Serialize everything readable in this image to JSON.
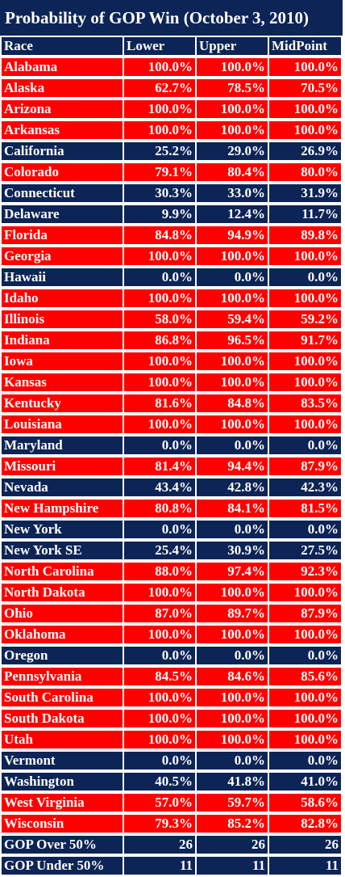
{
  "colors": {
    "gop": "#ff0000",
    "dem": "#0d2456",
    "header": "#0d2456",
    "text": "#ffffff"
  },
  "chart_data": {
    "type": "table",
    "title": "Probability of GOP Win (October 3, 2010)",
    "columns": [
      "Race",
      "Lower",
      "Upper",
      "MidPoint"
    ],
    "rows": [
      {
        "race": "Alabama",
        "lower": "100.0%",
        "upper": "100.0%",
        "mid": "100.0%",
        "party": "gop"
      },
      {
        "race": "Alaska",
        "lower": "62.7%",
        "upper": "78.5%",
        "mid": "70.5%",
        "party": "gop"
      },
      {
        "race": "Arizona",
        "lower": "100.0%",
        "upper": "100.0%",
        "mid": "100.0%",
        "party": "gop"
      },
      {
        "race": "Arkansas",
        "lower": "100.0%",
        "upper": "100.0%",
        "mid": "100.0%",
        "party": "gop"
      },
      {
        "race": "California",
        "lower": "25.2%",
        "upper": "29.0%",
        "mid": "26.9%",
        "party": "dem"
      },
      {
        "race": "Colorado",
        "lower": "79.1%",
        "upper": "80.4%",
        "mid": "80.0%",
        "party": "gop"
      },
      {
        "race": "Connecticut",
        "lower": "30.3%",
        "upper": "33.0%",
        "mid": "31.9%",
        "party": "dem"
      },
      {
        "race": "Delaware",
        "lower": "9.9%",
        "upper": "12.4%",
        "mid": "11.7%",
        "party": "dem"
      },
      {
        "race": "Florida",
        "lower": "84.8%",
        "upper": "94.9%",
        "mid": "89.8%",
        "party": "gop"
      },
      {
        "race": "Georgia",
        "lower": "100.0%",
        "upper": "100.0%",
        "mid": "100.0%",
        "party": "gop"
      },
      {
        "race": "Hawaii",
        "lower": "0.0%",
        "upper": "0.0%",
        "mid": "0.0%",
        "party": "dem"
      },
      {
        "race": "Idaho",
        "lower": "100.0%",
        "upper": "100.0%",
        "mid": "100.0%",
        "party": "gop"
      },
      {
        "race": "Illinois",
        "lower": "58.0%",
        "upper": "59.4%",
        "mid": "59.2%",
        "party": "gop"
      },
      {
        "race": "Indiana",
        "lower": "86.8%",
        "upper": "96.5%",
        "mid": "91.7%",
        "party": "gop"
      },
      {
        "race": "Iowa",
        "lower": "100.0%",
        "upper": "100.0%",
        "mid": "100.0%",
        "party": "gop"
      },
      {
        "race": "Kansas",
        "lower": "100.0%",
        "upper": "100.0%",
        "mid": "100.0%",
        "party": "gop"
      },
      {
        "race": "Kentucky",
        "lower": "81.6%",
        "upper": "84.8%",
        "mid": "83.5%",
        "party": "gop"
      },
      {
        "race": "Louisiana",
        "lower": "100.0%",
        "upper": "100.0%",
        "mid": "100.0%",
        "party": "gop"
      },
      {
        "race": "Maryland",
        "lower": "0.0%",
        "upper": "0.0%",
        "mid": "0.0%",
        "party": "dem"
      },
      {
        "race": "Missouri",
        "lower": "81.4%",
        "upper": "94.4%",
        "mid": "87.9%",
        "party": "gop"
      },
      {
        "race": "Nevada",
        "lower": "43.4%",
        "upper": "42.8%",
        "mid": "42.3%",
        "party": "dem"
      },
      {
        "race": "New Hampshire",
        "lower": "80.8%",
        "upper": "84.1%",
        "mid": "81.5%",
        "party": "gop"
      },
      {
        "race": "New York",
        "lower": "0.0%",
        "upper": "0.0%",
        "mid": "0.0%",
        "party": "dem"
      },
      {
        "race": "New York SE",
        "lower": "25.4%",
        "upper": "30.9%",
        "mid": "27.5%",
        "party": "dem"
      },
      {
        "race": "North Carolina",
        "lower": "88.0%",
        "upper": "97.4%",
        "mid": "92.3%",
        "party": "gop"
      },
      {
        "race": "North Dakota",
        "lower": "100.0%",
        "upper": "100.0%",
        "mid": "100.0%",
        "party": "gop"
      },
      {
        "race": "Ohio",
        "lower": "87.0%",
        "upper": "89.7%",
        "mid": "87.9%",
        "party": "gop"
      },
      {
        "race": "Oklahoma",
        "lower": "100.0%",
        "upper": "100.0%",
        "mid": "100.0%",
        "party": "gop"
      },
      {
        "race": "Oregon",
        "lower": "0.0%",
        "upper": "0.0%",
        "mid": "0.0%",
        "party": "dem"
      },
      {
        "race": "Pennsylvania",
        "lower": "84.5%",
        "upper": "84.6%",
        "mid": "85.6%",
        "party": "gop"
      },
      {
        "race": "South Carolina",
        "lower": "100.0%",
        "upper": "100.0%",
        "mid": "100.0%",
        "party": "gop"
      },
      {
        "race": "South Dakota",
        "lower": "100.0%",
        "upper": "100.0%",
        "mid": "100.0%",
        "party": "gop"
      },
      {
        "race": "Utah",
        "lower": "100.0%",
        "upper": "100.0%",
        "mid": "100.0%",
        "party": "gop"
      },
      {
        "race": "Vermont",
        "lower": "0.0%",
        "upper": "0.0%",
        "mid": "0.0%",
        "party": "dem"
      },
      {
        "race": "Washington",
        "lower": "40.5%",
        "upper": "41.8%",
        "mid": "41.0%",
        "party": "dem"
      },
      {
        "race": "West Virginia",
        "lower": "57.0%",
        "upper": "59.7%",
        "mid": "58.6%",
        "party": "gop"
      },
      {
        "race": "Wisconsin",
        "lower": "79.3%",
        "upper": "85.2%",
        "mid": "82.8%",
        "party": "gop"
      }
    ],
    "summary": [
      {
        "race": "GOP Over 50%",
        "lower": "26",
        "upper": "26",
        "mid": "26"
      },
      {
        "race": "GOP Under 50%",
        "lower": "11",
        "upper": "11",
        "mid": "11"
      }
    ]
  }
}
